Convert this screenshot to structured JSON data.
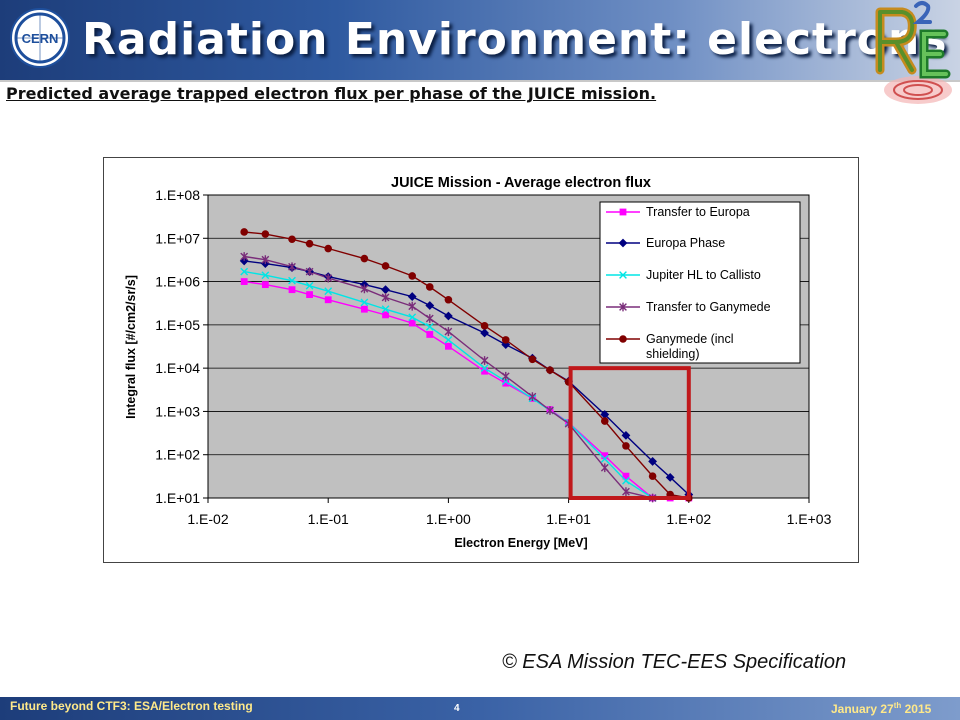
{
  "slide": {
    "title": "Radiation Environment: electrons",
    "subtitle": "Predicted average trapped electron flux per phase of the JUICE mission.",
    "copyright": "© ESA Mission TEC-EES Specification",
    "logo_left_text": "CERN",
    "logo_right_icon": "r2e-logo-icon",
    "footer": {
      "left": "Future beyond CTF3: ESA/Electron testing",
      "page": "4",
      "date_main": "January 27",
      "date_sup": "th",
      "date_year": " 2015"
    },
    "colors": {
      "header": "#2f5aa0",
      "footer_text": "#ffe98a",
      "highlight_box": "#c0181b"
    }
  },
  "chart_data": {
    "type": "line",
    "title": "JUICE Mission - Average electron flux",
    "xlabel": "Electron Energy [MeV]",
    "ylabel": "Integral flux [#/cm2/sr/s]",
    "x_scale": "log",
    "y_scale": "log",
    "xlim": [
      0.01,
      1000
    ],
    "ylim": [
      10,
      100000000
    ],
    "x_ticks": [
      "1.E-02",
      "1.E-01",
      "1.E+00",
      "1.E+01",
      "1.E+02",
      "1.E+03"
    ],
    "y_ticks": [
      "1.E+01",
      "1.E+02",
      "1.E+03",
      "1.E+04",
      "1.E+05",
      "1.E+06",
      "1.E+07",
      "1.E+08"
    ],
    "grid": "horizontal",
    "plot_background": "#c0c0c0",
    "legend_position": "top-right",
    "highlight_box": {
      "x_range": [
        10,
        100
      ],
      "y_range": [
        10,
        10000
      ]
    },
    "series": [
      {
        "name": "Transfer to Europa",
        "color": "#ff00ff",
        "marker": "square",
        "x": [
          0.02,
          0.03,
          0.05,
          0.07,
          0.1,
          0.2,
          0.3,
          0.5,
          0.7,
          1,
          2,
          3,
          5,
          7,
          10,
          20,
          30,
          50,
          70,
          100
        ],
        "y": [
          1000000,
          850000,
          650000,
          500000,
          380000,
          230000,
          170000,
          110000,
          60000,
          32000,
          8500,
          4500,
          2000,
          1100,
          550,
          95,
          32,
          10,
          10,
          10
        ]
      },
      {
        "name": "Europa Phase",
        "color": "#000080",
        "marker": "diamond",
        "x": [
          0.02,
          0.03,
          0.05,
          0.07,
          0.1,
          0.2,
          0.3,
          0.5,
          0.7,
          1,
          2,
          3,
          5,
          7,
          10,
          20,
          30,
          50,
          70,
          100
        ],
        "y": [
          3000000,
          2600000,
          2100000,
          1700000,
          1300000,
          850000,
          650000,
          450000,
          280000,
          160000,
          65000,
          35000,
          17000,
          9000,
          5000,
          850,
          280,
          70,
          30,
          12
        ]
      },
      {
        "name": "Jupiter HL to Callisto",
        "color": "#00e5e5",
        "marker": "x",
        "x": [
          0.02,
          0.03,
          0.05,
          0.07,
          0.1,
          0.2,
          0.3,
          0.5,
          0.7,
          1,
          2,
          3,
          5,
          7,
          10,
          20,
          30,
          50
        ],
        "y": [
          1700000,
          1400000,
          1050000,
          800000,
          600000,
          330000,
          230000,
          150000,
          90000,
          45000,
          10000,
          5000,
          2000,
          1050,
          550,
          80,
          25,
          10
        ]
      },
      {
        "name": "Transfer to Ganymede",
        "color": "#7a2d7a",
        "marker": "star",
        "x": [
          0.02,
          0.03,
          0.05,
          0.07,
          0.1,
          0.2,
          0.3,
          0.5,
          0.7,
          1,
          2,
          3,
          5,
          7,
          10,
          20,
          30,
          50
        ],
        "y": [
          3800000,
          3200000,
          2200000,
          1700000,
          1200000,
          680000,
          430000,
          270000,
          140000,
          70000,
          15000,
          6500,
          2200,
          1050,
          520,
          50,
          14,
          10
        ]
      },
      {
        "name": "Ganymede (incl shielding)",
        "color": "#800000",
        "marker": "circle",
        "x": [
          0.02,
          0.03,
          0.05,
          0.07,
          0.1,
          0.2,
          0.3,
          0.5,
          0.7,
          1,
          2,
          3,
          5,
          7,
          10,
          20,
          30,
          50,
          70,
          100
        ],
        "y": [
          14000000,
          12500000,
          9500000,
          7500000,
          5800000,
          3400000,
          2300000,
          1350000,
          750000,
          380000,
          95000,
          45000,
          16000,
          9000,
          4800,
          600,
          160,
          32,
          12,
          10
        ]
      }
    ]
  }
}
